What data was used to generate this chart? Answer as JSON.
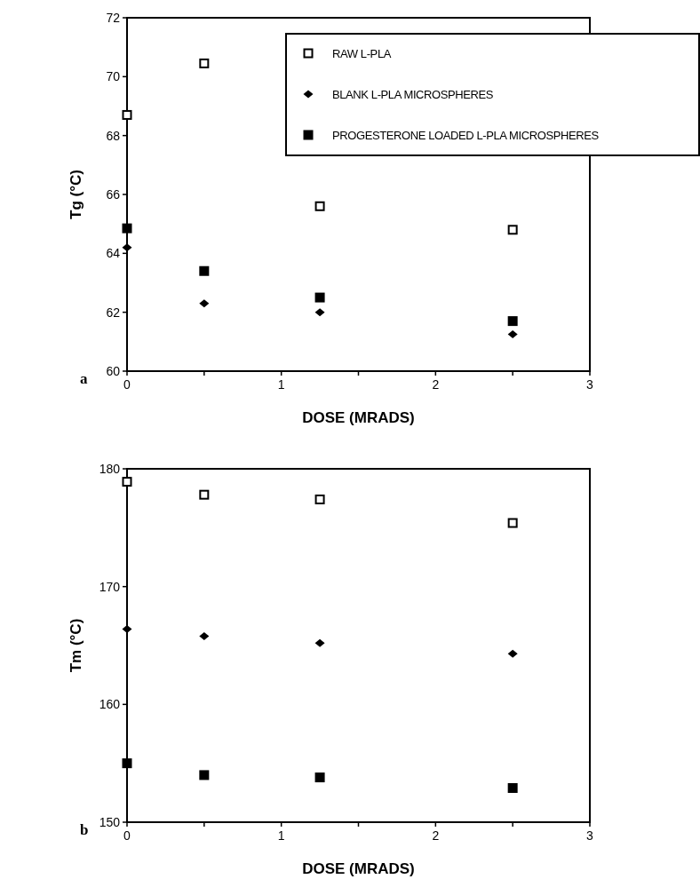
{
  "chart_data": [
    {
      "type": "scatter",
      "xlabel": "DOSE  (MRADS)",
      "ylabel": "Tg  (°C)",
      "x": [
        0,
        0.5,
        1.25,
        2.5
      ],
      "xlim": [
        0,
        3
      ],
      "xticks": [
        0,
        {
          "value": 0.5,
          "label": null
        },
        1,
        {
          "value": 1.5,
          "label": null
        },
        2,
        {
          "value": 2.5,
          "label": null
        },
        3
      ],
      "ylim": [
        60,
        72
      ],
      "yticks": [
        60,
        62,
        64,
        66,
        68,
        70,
        72
      ],
      "legend": "top right",
      "grid": false,
      "annotations": [
        "a"
      ],
      "series": [
        {
          "name": "RAW L-PLA",
          "color": "#ffffff",
          "marker": "square",
          "values": [
            68.7,
            70.45,
            65.6,
            64.8
          ]
        },
        {
          "name": "BLANK L-PLA MICROSPHERES",
          "color": "#000000",
          "marker": "diamond",
          "values": [
            64.2,
            62.3,
            62.0,
            61.25
          ]
        },
        {
          "name": "PROGESTERONE LOADED L-PLA MICROSPHERES",
          "color": "#000000",
          "marker": "square",
          "values": [
            64.85,
            63.4,
            62.5,
            61.7
          ]
        }
      ]
    },
    {
      "type": "scatter",
      "xlabel": "DOSE  (MRADS)",
      "ylabel": "Tm  (°C)",
      "x": [
        0,
        0.5,
        1.25,
        2.5
      ],
      "xlim": [
        0,
        3
      ],
      "xticks": [
        0,
        {
          "value": 0.5,
          "label": null
        },
        1,
        {
          "value": 1.5,
          "label": null
        },
        2,
        {
          "value": 2.5,
          "label": null
        },
        3
      ],
      "ylim": [
        150,
        180
      ],
      "yticks": [
        150,
        160,
        170,
        180
      ],
      "grid": false,
      "annotations": [
        "b"
      ],
      "series": [
        {
          "color": "#ffffff",
          "marker": "square",
          "values": [
            178.9,
            177.8,
            177.4,
            175.4
          ]
        },
        {
          "color": "#000000",
          "marker": "diamond",
          "values": [
            166.4,
            165.8,
            165.2,
            164.3
          ]
        },
        {
          "color": "#000000",
          "marker": "square",
          "values": [
            155.0,
            154.0,
            153.8,
            152.9
          ]
        }
      ]
    }
  ]
}
